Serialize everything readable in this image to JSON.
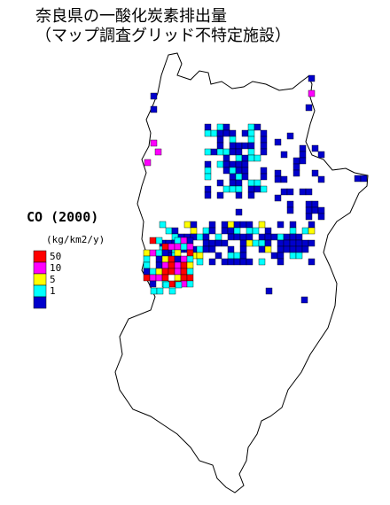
{
  "title": {
    "line1": "奈良県の一酸化炭素排出量",
    "line2": "（マップ調査グリッド不特定施設）"
  },
  "legend": {
    "title": "CO (2000)",
    "unit": "(kg/km2/y)",
    "labels": [
      "50",
      "10",
      "5",
      "1"
    ],
    "colors": [
      "#ff0000",
      "#ff00ff",
      "#ffff00",
      "#00ffff",
      "#0000cc"
    ]
  }
}
